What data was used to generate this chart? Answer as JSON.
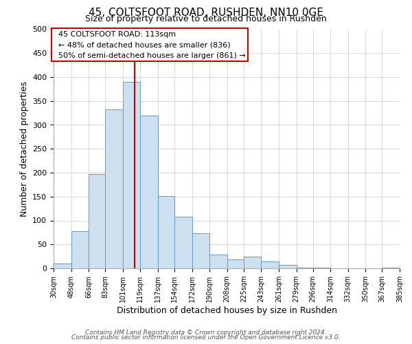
{
  "title": "45, COLTSFOOT ROAD, RUSHDEN, NN10 0GE",
  "subtitle": "Size of property relative to detached houses in Rushden",
  "xlabel": "Distribution of detached houses by size in Rushden",
  "ylabel": "Number of detached properties",
  "bar_edges": [
    30,
    48,
    66,
    83,
    101,
    119,
    137,
    154,
    172,
    190,
    208,
    225,
    243,
    261,
    279,
    296,
    314,
    332,
    350,
    367,
    385
  ],
  "bar_heights": [
    10,
    78,
    197,
    332,
    390,
    320,
    151,
    108,
    73,
    29,
    19,
    24,
    15,
    7,
    2,
    1,
    0,
    0,
    0,
    1
  ],
  "bar_color": "#cce0f0",
  "bar_edge_color": "#6699cc",
  "vline_x": 113,
  "vline_color": "#cc0000",
  "annotation_title": "45 COLTSFOOT ROAD: 113sqm",
  "annotation_line1": "← 48% of detached houses are smaller (836)",
  "annotation_line2": "50% of semi-detached houses are larger (861) →",
  "annotation_box_color": "#ffffff",
  "annotation_box_edge": "#cc0000",
  "ylim": [
    0,
    500
  ],
  "tick_labels": [
    "30sqm",
    "48sqm",
    "66sqm",
    "83sqm",
    "101sqm",
    "119sqm",
    "137sqm",
    "154sqm",
    "172sqm",
    "190sqm",
    "208sqm",
    "225sqm",
    "243sqm",
    "261sqm",
    "279sqm",
    "296sqm",
    "314sqm",
    "332sqm",
    "350sqm",
    "367sqm",
    "385sqm"
  ],
  "ytick_labels": [
    "0",
    "50",
    "100",
    "150",
    "200",
    "250",
    "300",
    "350",
    "400",
    "450",
    "500"
  ],
  "ytick_vals": [
    0,
    50,
    100,
    150,
    200,
    250,
    300,
    350,
    400,
    450,
    500
  ],
  "footnote1": "Contains HM Land Registry data © Crown copyright and database right 2024.",
  "footnote2": "Contains public sector information licensed under the Open Government Licence v3.0.",
  "background_color": "#ffffff",
  "grid_color": "#d0d8e8"
}
